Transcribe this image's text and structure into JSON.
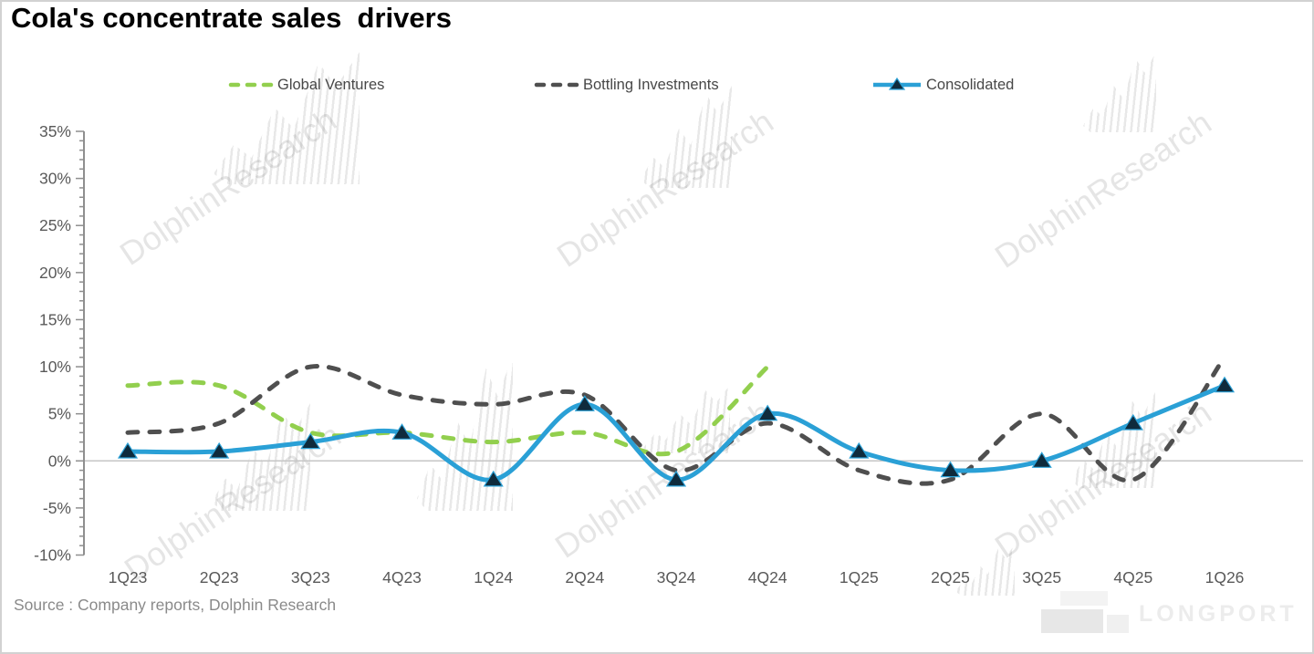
{
  "title": "Cola's concentrate sales  drivers",
  "source": "Source : Company reports, Dolphin Research",
  "watermark": {
    "text": "DolphinResearch",
    "logo_text": "LONGPORT"
  },
  "colors": {
    "global_ventures": "#92cf4e",
    "bottling_investments": "#4f4f4f",
    "consolidated": "#2aa0d6",
    "marker": "#0f2b3c",
    "zero_line": "#c6c6c6",
    "axis": "#8f8f8f",
    "tick_label": "#595959"
  },
  "chart_data": {
    "type": "line",
    "title": "Cola's concentrate sales  drivers",
    "xlabel": "",
    "ylabel": "",
    "ylabel_format": "percent",
    "ylim": [
      -10,
      35
    ],
    "ytick_major_step": 5,
    "ytick_minor_step": 1,
    "grid": "zero-line-only",
    "legend_position": "top",
    "categories": [
      "1Q23",
      "2Q23",
      "3Q23",
      "4Q23",
      "1Q24",
      "2Q24",
      "3Q24",
      "4Q24",
      "1Q25",
      "2Q25",
      "3Q25",
      "4Q25",
      "1Q26"
    ],
    "series": [
      {
        "name": "Global Ventures",
        "style": "dashed",
        "color": "#92cf4e",
        "values": [
          8,
          8,
          3,
          3,
          2,
          3,
          1,
          10,
          null,
          null,
          null,
          null,
          null
        ]
      },
      {
        "name": "Bottling Investments",
        "style": "dashed",
        "color": "#4f4f4f",
        "values": [
          3,
          4,
          10,
          7,
          6,
          7,
          -1,
          4,
          -1,
          -2,
          5,
          -2,
          11
        ]
      },
      {
        "name": "Consolidated",
        "style": "solid",
        "marker": "triangle",
        "color": "#2aa0d6",
        "values": [
          1,
          1,
          2,
          3,
          -2,
          6,
          -2,
          5,
          1,
          -1,
          0,
          4,
          8
        ]
      }
    ]
  }
}
